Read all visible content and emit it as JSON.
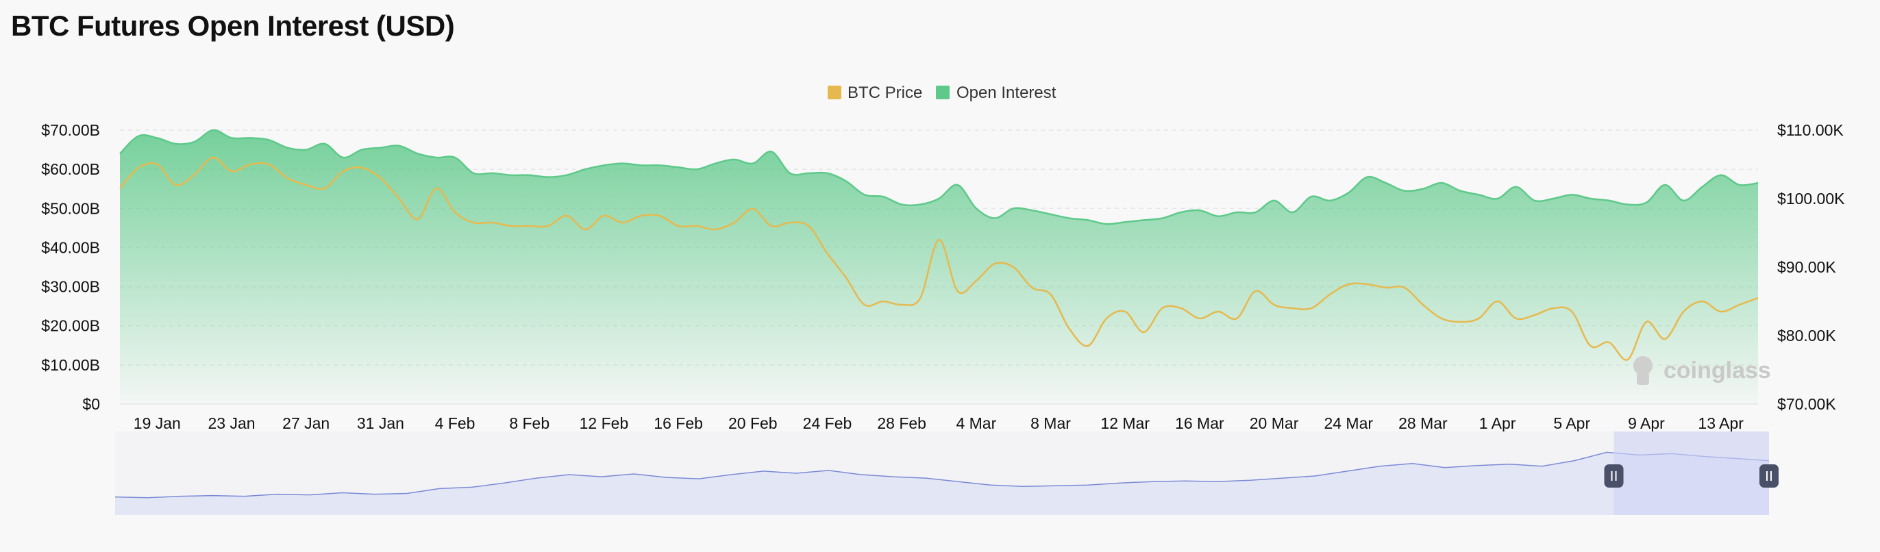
{
  "title": "BTC Futures Open Interest (USD)",
  "watermark": "coinglass",
  "colors": {
    "price": "#e6b94f",
    "open_interest": "#5ec98a",
    "brush_line": "#7b8ad6",
    "brush_fill": "#e3e6f4",
    "brush_window": "#cfd4f5",
    "background": "#f8f8f8"
  },
  "chart_data": {
    "type": "area",
    "legend": {
      "position": "top-center",
      "items": [
        "BTC Price",
        "Open Interest"
      ]
    },
    "x_start": "2025-01-17",
    "x_end": "2025-04-15",
    "x_ticks": [
      "19 Jan",
      "23 Jan",
      "27 Jan",
      "31 Jan",
      "4 Feb",
      "8 Feb",
      "12 Feb",
      "16 Feb",
      "20 Feb",
      "24 Feb",
      "28 Feb",
      "4 Mar",
      "8 Mar",
      "12 Mar",
      "16 Mar",
      "20 Mar",
      "24 Mar",
      "28 Mar",
      "1 Apr",
      "5 Apr",
      "9 Apr",
      "13 Apr"
    ],
    "y_left": {
      "ticks": [
        "$0",
        "$10.00B",
        "$20.00B",
        "$30.00B",
        "$40.00B",
        "$50.00B",
        "$60.00B",
        "$70.00B"
      ],
      "min": 0,
      "max": 70
    },
    "y_right": {
      "ticks": [
        "$70.00K",
        "$80.00K",
        "$90.00K",
        "$100.00K",
        "$110.00K"
      ],
      "min": 70,
      "max": 110
    },
    "grid": true,
    "series": [
      {
        "name": "Open Interest",
        "axis": "left",
        "unit": "USD billions",
        "style": "area",
        "points": [
          [
            "2025-01-17",
            64.0
          ],
          [
            "2025-01-18",
            68.5
          ],
          [
            "2025-01-19",
            68.0
          ],
          [
            "2025-01-20",
            66.5
          ],
          [
            "2025-01-21",
            67.0
          ],
          [
            "2025-01-22",
            70.0
          ],
          [
            "2025-01-23",
            68.0
          ],
          [
            "2025-01-24",
            68.0
          ],
          [
            "2025-01-25",
            67.5
          ],
          [
            "2025-01-26",
            65.5
          ],
          [
            "2025-01-27",
            65.0
          ],
          [
            "2025-01-28",
            66.5
          ],
          [
            "2025-01-29",
            63.0
          ],
          [
            "2025-01-30",
            65.0
          ],
          [
            "2025-01-31",
            65.5
          ],
          [
            "2025-02-01",
            66.0
          ],
          [
            "2025-02-02",
            64.0
          ],
          [
            "2025-02-03",
            63.0
          ],
          [
            "2025-02-04",
            63.0
          ],
          [
            "2025-02-05",
            59.0
          ],
          [
            "2025-02-06",
            59.0
          ],
          [
            "2025-02-07",
            58.5
          ],
          [
            "2025-02-08",
            58.5
          ],
          [
            "2025-02-09",
            58.0
          ],
          [
            "2025-02-10",
            58.5
          ],
          [
            "2025-02-11",
            60.0
          ],
          [
            "2025-02-12",
            61.0
          ],
          [
            "2025-02-13",
            61.5
          ],
          [
            "2025-02-14",
            61.0
          ],
          [
            "2025-02-15",
            61.0
          ],
          [
            "2025-02-16",
            60.5
          ],
          [
            "2025-02-17",
            60.0
          ],
          [
            "2025-02-18",
            61.5
          ],
          [
            "2025-02-19",
            62.5
          ],
          [
            "2025-02-20",
            61.5
          ],
          [
            "2025-02-21",
            64.5
          ],
          [
            "2025-02-22",
            59.0
          ],
          [
            "2025-02-23",
            59.0
          ],
          [
            "2025-02-24",
            59.0
          ],
          [
            "2025-02-25",
            57.0
          ],
          [
            "2025-02-26",
            53.5
          ],
          [
            "2025-02-27",
            53.0
          ],
          [
            "2025-02-28",
            51.0
          ],
          [
            "2025-03-01",
            51.0
          ],
          [
            "2025-03-02",
            52.5
          ],
          [
            "2025-03-03",
            56.0
          ],
          [
            "2025-03-04",
            50.0
          ],
          [
            "2025-03-05",
            47.5
          ],
          [
            "2025-03-06",
            50.0
          ],
          [
            "2025-03-07",
            49.5
          ],
          [
            "2025-03-08",
            48.5
          ],
          [
            "2025-03-09",
            47.5
          ],
          [
            "2025-03-10",
            47.0
          ],
          [
            "2025-03-11",
            46.0
          ],
          [
            "2025-03-12",
            46.5
          ],
          [
            "2025-03-13",
            47.0
          ],
          [
            "2025-03-14",
            47.5
          ],
          [
            "2025-03-15",
            49.0
          ],
          [
            "2025-03-16",
            49.5
          ],
          [
            "2025-03-17",
            48.0
          ],
          [
            "2025-03-18",
            49.0
          ],
          [
            "2025-03-19",
            49.0
          ],
          [
            "2025-03-20",
            52.0
          ],
          [
            "2025-03-21",
            49.0
          ],
          [
            "2025-03-22",
            53.0
          ],
          [
            "2025-03-23",
            52.0
          ],
          [
            "2025-03-24",
            54.0
          ],
          [
            "2025-03-25",
            58.0
          ],
          [
            "2025-03-26",
            56.5
          ],
          [
            "2025-03-27",
            54.5
          ],
          [
            "2025-03-28",
            55.0
          ],
          [
            "2025-03-29",
            56.5
          ],
          [
            "2025-03-30",
            54.5
          ],
          [
            "2025-03-31",
            53.5
          ],
          [
            "2025-04-01",
            52.5
          ],
          [
            "2025-04-02",
            55.5
          ],
          [
            "2025-04-03",
            52.0
          ],
          [
            "2025-04-04",
            52.5
          ],
          [
            "2025-04-05",
            53.5
          ],
          [
            "2025-04-06",
            52.5
          ],
          [
            "2025-04-07",
            52.0
          ],
          [
            "2025-04-08",
            51.0
          ],
          [
            "2025-04-09",
            51.5
          ],
          [
            "2025-04-10",
            56.0
          ],
          [
            "2025-04-11",
            52.0
          ],
          [
            "2025-04-12",
            55.5
          ],
          [
            "2025-04-13",
            58.5
          ],
          [
            "2025-04-14",
            56.0
          ],
          [
            "2025-04-15",
            56.5
          ]
        ]
      },
      {
        "name": "BTC Price",
        "axis": "right",
        "unit": "USD thousands",
        "style": "line",
        "points": [
          [
            "2025-01-17",
            101.5
          ],
          [
            "2025-01-18",
            104.5
          ],
          [
            "2025-01-19",
            105.0
          ],
          [
            "2025-01-20",
            102.0
          ],
          [
            "2025-01-21",
            103.5
          ],
          [
            "2025-01-22",
            106.0
          ],
          [
            "2025-01-23",
            104.0
          ],
          [
            "2025-01-24",
            105.0
          ],
          [
            "2025-01-25",
            105.0
          ],
          [
            "2025-01-26",
            103.0
          ],
          [
            "2025-01-27",
            102.0
          ],
          [
            "2025-01-28",
            101.5
          ],
          [
            "2025-01-29",
            104.0
          ],
          [
            "2025-01-30",
            104.5
          ],
          [
            "2025-01-31",
            103.0
          ],
          [
            "2025-02-01",
            100.0
          ],
          [
            "2025-02-02",
            97.0
          ],
          [
            "2025-02-03",
            101.5
          ],
          [
            "2025-02-04",
            98.0
          ],
          [
            "2025-02-05",
            96.5
          ],
          [
            "2025-02-06",
            96.5
          ],
          [
            "2025-02-07",
            96.0
          ],
          [
            "2025-02-08",
            96.0
          ],
          [
            "2025-02-09",
            96.0
          ],
          [
            "2025-02-10",
            97.5
          ],
          [
            "2025-02-11",
            95.5
          ],
          [
            "2025-02-12",
            97.5
          ],
          [
            "2025-02-13",
            96.5
          ],
          [
            "2025-02-14",
            97.5
          ],
          [
            "2025-02-15",
            97.5
          ],
          [
            "2025-02-16",
            96.0
          ],
          [
            "2025-02-17",
            96.0
          ],
          [
            "2025-02-18",
            95.5
          ],
          [
            "2025-02-19",
            96.5
          ],
          [
            "2025-02-20",
            98.5
          ],
          [
            "2025-02-21",
            96.0
          ],
          [
            "2025-02-22",
            96.5
          ],
          [
            "2025-02-23",
            96.0
          ],
          [
            "2025-02-24",
            92.0
          ],
          [
            "2025-02-25",
            88.5
          ],
          [
            "2025-02-26",
            84.5
          ],
          [
            "2025-02-27",
            85.0
          ],
          [
            "2025-02-28",
            84.5
          ],
          [
            "2025-03-01",
            85.5
          ],
          [
            "2025-03-02",
            94.0
          ],
          [
            "2025-03-03",
            86.5
          ],
          [
            "2025-03-04",
            88.0
          ],
          [
            "2025-03-05",
            90.5
          ],
          [
            "2025-03-06",
            90.0
          ],
          [
            "2025-03-07",
            87.0
          ],
          [
            "2025-03-08",
            86.0
          ],
          [
            "2025-03-09",
            81.0
          ],
          [
            "2025-03-10",
            78.5
          ],
          [
            "2025-03-11",
            82.5
          ],
          [
            "2025-03-12",
            83.5
          ],
          [
            "2025-03-13",
            80.5
          ],
          [
            "2025-03-14",
            84.0
          ],
          [
            "2025-03-15",
            84.0
          ],
          [
            "2025-03-16",
            82.5
          ],
          [
            "2025-03-17",
            83.5
          ],
          [
            "2025-03-18",
            82.5
          ],
          [
            "2025-03-19",
            86.5
          ],
          [
            "2025-03-20",
            84.5
          ],
          [
            "2025-03-21",
            84.0
          ],
          [
            "2025-03-22",
            84.0
          ],
          [
            "2025-03-23",
            86.0
          ],
          [
            "2025-03-24",
            87.5
          ],
          [
            "2025-03-25",
            87.5
          ],
          [
            "2025-03-26",
            87.0
          ],
          [
            "2025-03-27",
            87.0
          ],
          [
            "2025-03-28",
            84.5
          ],
          [
            "2025-03-29",
            82.5
          ],
          [
            "2025-03-30",
            82.0
          ],
          [
            "2025-03-31",
            82.5
          ],
          [
            "2025-04-01",
            85.0
          ],
          [
            "2025-04-02",
            82.5
          ],
          [
            "2025-04-03",
            83.0
          ],
          [
            "2025-04-04",
            84.0
          ],
          [
            "2025-04-05",
            83.5
          ],
          [
            "2025-04-06",
            78.5
          ],
          [
            "2025-04-07",
            79.0
          ],
          [
            "2025-04-08",
            76.5
          ],
          [
            "2025-04-09",
            82.0
          ],
          [
            "2025-04-10",
            79.5
          ],
          [
            "2025-04-11",
            83.5
          ],
          [
            "2025-04-12",
            85.0
          ],
          [
            "2025-04-13",
            83.5
          ],
          [
            "2025-04-14",
            84.5
          ],
          [
            "2025-04-15",
            85.5
          ]
        ]
      }
    ],
    "navigator": {
      "type": "area",
      "window_start": "2025-01-17",
      "window_end": "2025-04-15",
      "selection_fraction": [
        0.953,
        1.0
      ],
      "values": [
        18,
        17,
        19,
        20,
        19,
        22,
        21,
        24,
        22,
        23,
        30,
        32,
        38,
        45,
        50,
        47,
        51,
        46,
        44,
        50,
        55,
        52,
        56,
        50,
        47,
        45,
        40,
        35,
        33,
        34,
        35,
        38,
        40,
        41,
        40,
        42,
        45,
        48,
        55,
        62,
        66,
        60,
        63,
        65,
        62,
        70,
        82,
        78,
        80,
        76,
        73,
        70
      ]
    }
  }
}
